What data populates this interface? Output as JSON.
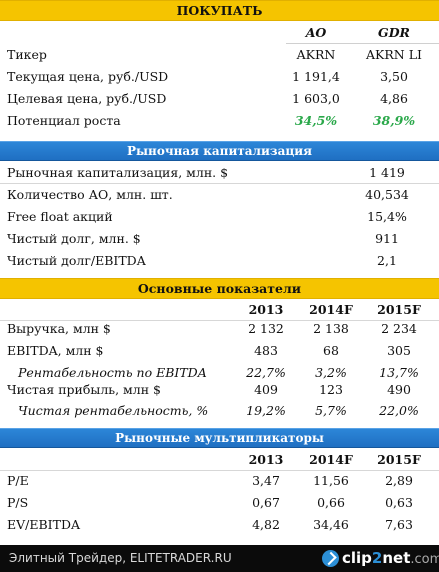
{
  "header": {
    "title": "ПОКУПАТЬ"
  },
  "cols": {
    "ao": "AO",
    "gdr": "GDR"
  },
  "top_rows": [
    {
      "label": "Тикер",
      "ao": "AKRN",
      "gdr": "AKRN LI"
    },
    {
      "label": "Текущая цена, руб./USD",
      "ao": "1 191,4",
      "gdr": "3,50"
    },
    {
      "label": "Целевая цена, руб./USD",
      "ao": "1 603,0",
      "gdr": "4,86"
    },
    {
      "label": "Потенциал роста",
      "ao": "34,5%",
      "gdr": "38,9%"
    }
  ],
  "cap": {
    "title": "Рыночная капитализация",
    "rows": [
      {
        "label": "Рыночная капитализация, млн. $",
        "value": "1 419"
      },
      {
        "label": "Количество АО, млн. шт.",
        "value": "40,534"
      },
      {
        "label": "Free float акций",
        "value": "15,4%"
      },
      {
        "label": "Чистый долг, млн. $",
        "value": "911"
      },
      {
        "label": "Чистый долг/EBITDA",
        "value": "2,1"
      }
    ]
  },
  "indicators": {
    "title": "Основные показатели",
    "years": [
      "2013",
      "2014F",
      "2015F"
    ],
    "rows": [
      {
        "label": "Выручка, млн $",
        "values": [
          "2 132",
          "2 138",
          "2 234"
        ]
      },
      {
        "label": "EBITDA, млн $",
        "values": [
          "483",
          "68",
          "305"
        ]
      },
      {
        "label": "Рентабельность по EBITDA",
        "values": [
          "22,7%",
          "3,2%",
          "13,7%"
        ]
      },
      {
        "label": "Чистая прибыль, млн $",
        "values": [
          "409",
          "123",
          "490"
        ]
      },
      {
        "label": "Чистая рентабельность, %",
        "values": [
          "19,2%",
          "5,7%",
          "22,0%"
        ]
      }
    ]
  },
  "multiples": {
    "title": "Рыночные мультипликаторы",
    "years": [
      "2013",
      "2014F",
      "2015F"
    ],
    "rows": [
      {
        "label": "P/E",
        "values": [
          "3,47",
          "11,56",
          "2,89"
        ]
      },
      {
        "label": "P/S",
        "values": [
          "0,67",
          "0,66",
          "0,63"
        ]
      },
      {
        "label": "EV/EBITDA",
        "values": [
          "4,82",
          "34,46",
          "7,63"
        ]
      }
    ]
  },
  "footer": {
    "source": "Элитный Трейдер, ELITETRADER.RU",
    "logo_part1": "clip",
    "logo_part2": "2",
    "logo_part3": "net",
    "logo_part4": ".com"
  },
  "colors": {
    "yellow_header": "#f5c400",
    "blue_header": "#1f6fc2",
    "positive": "#2aa84a"
  }
}
